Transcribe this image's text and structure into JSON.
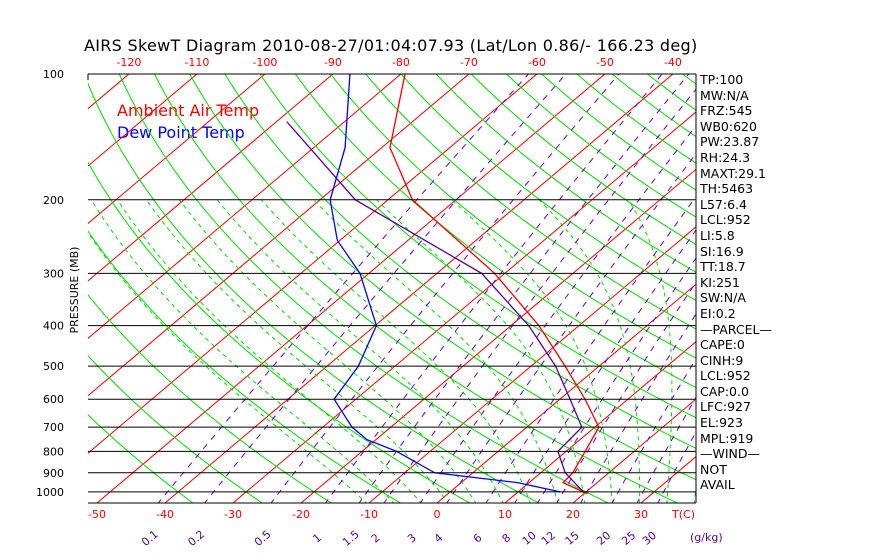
{
  "chart_data": {
    "type": "line",
    "title": "AIRS SkewT Diagram 2010-08-27/01:04:07.93 (Lat/Lon 0.86/- 166.23 deg)",
    "ylabel": "PRESSURE (MB)",
    "xlabel": "T(C)",
    "mixing_ratio_label": "(g/kg)",
    "pressure_ticks": [
      100,
      200,
      300,
      400,
      500,
      600,
      700,
      800,
      900,
      1000
    ],
    "bottom_temp_ticks": [
      -50,
      -40,
      -30,
      -20,
      -10,
      0,
      10,
      20,
      30
    ],
    "top_temp_ticks": [
      -120,
      -110,
      -100,
      -90,
      -80,
      -70,
      -60,
      -50,
      -40
    ],
    "mixing_ratio_ticks": [
      0.1,
      0.2,
      0.5,
      1,
      1.5,
      2,
      3,
      4,
      6,
      8,
      10,
      12,
      15,
      20,
      25,
      30
    ],
    "legend": [
      {
        "name": "Ambient Air Temp",
        "color": "#ff0000"
      },
      {
        "name": "Dew Point Temp",
        "color": "#0000ff"
      }
    ],
    "series": [
      {
        "name": "Ambient Air Temp",
        "color": "#ff0000",
        "p": [
          100,
          150,
          200,
          300,
          400,
          500,
          600,
          700,
          800,
          900,
          950,
          1010
        ],
        "t": [
          -79.4,
          -68.8,
          -56.4,
          -31.5,
          -15.9,
          -5,
          3.7,
          10.6,
          12.8,
          14.7,
          15,
          20.5
        ]
      },
      {
        "name": "Dew Point Temp",
        "color": "#0000ff",
        "p": [
          100,
          150,
          200,
          250,
          300,
          400,
          500,
          600,
          700,
          750,
          800,
          900,
          950,
          1000
        ],
        "t": [
          -87.5,
          -75.4,
          -68.5,
          -60.4,
          -51.3,
          -39.8,
          -35.4,
          -33.2,
          -25.7,
          -21.3,
          -14.9,
          -5.6,
          8.3,
          16.2
        ]
      },
      {
        "name": "Parcel",
        "color": "#550099",
        "p": [
          130,
          200,
          300,
          400,
          500,
          600,
          700,
          800,
          900,
          1000
        ],
        "t": [
          -88.5,
          -64.8,
          -33.4,
          -17.4,
          -6.4,
          1.5,
          8.1,
          8.8,
          13.6,
          19.6
        ]
      }
    ]
  },
  "stats": [
    "TP:100",
    "MW:N/A",
    "FRZ:545",
    "WB0:620",
    "PW:23.87",
    "RH:24.3",
    "MAXT:29.1",
    "TH:5463",
    "L57:6.4",
    "LCL:952",
    "LI:5.8",
    "SI:16.9",
    "TT:18.7",
    "KI:251",
    "SW:N/A",
    "EI:0.2",
    "—PARCEL—",
    "CAPE:0",
    "CINH:9",
    "LCL:952",
    "CAP:0.0",
    "LFC:927",
    "EL:923",
    "MPL:919",
    "—WIND—",
    "NOT",
    "AVAIL"
  ]
}
